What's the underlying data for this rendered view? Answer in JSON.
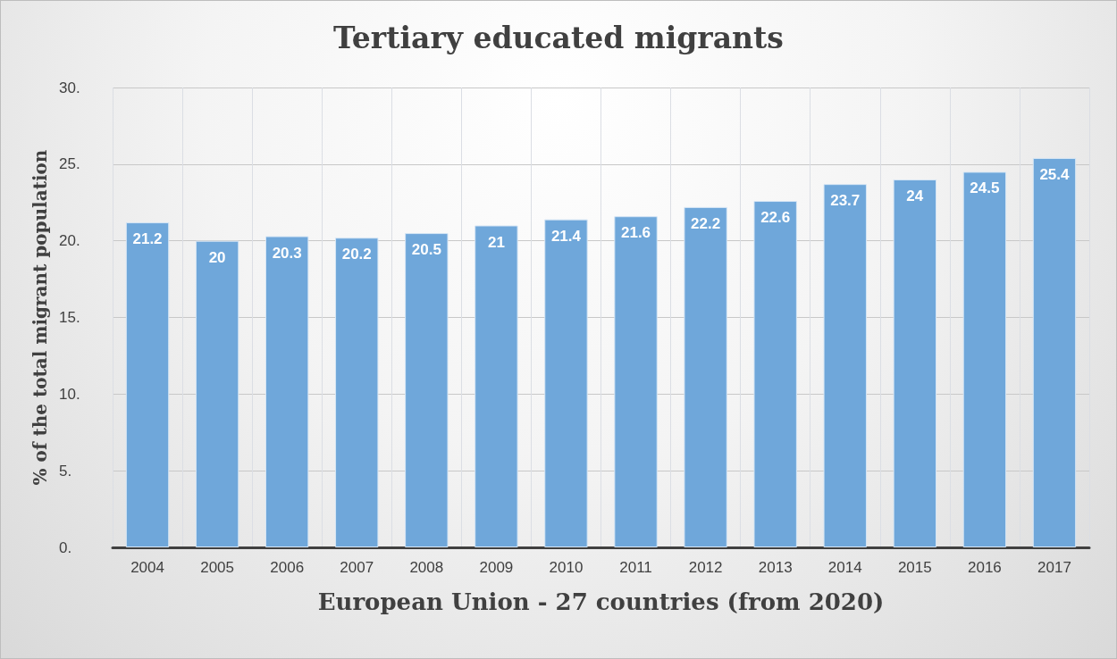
{
  "chart_data": {
    "type": "bar",
    "title": "Tertiary educated migrants",
    "xlabel": "European Union - 27 countries (from 2020)",
    "ylabel": "% of the total migrant population",
    "categories": [
      "2004",
      "2005",
      "2006",
      "2007",
      "2008",
      "2009",
      "2010",
      "2011",
      "2012",
      "2013",
      "2014",
      "2015",
      "2016",
      "2017"
    ],
    "values": [
      21.2,
      20,
      20.3,
      20.2,
      20.5,
      21,
      21.4,
      21.6,
      22.2,
      22.6,
      23.7,
      24,
      24.5,
      25.4
    ],
    "color": "#6fa7da",
    "ylim": [
      0,
      30
    ],
    "yticks": [
      {
        "value": 0,
        "label": "0."
      },
      {
        "value": 5,
        "label": "5."
      },
      {
        "value": 10,
        "label": "10."
      },
      {
        "value": 15,
        "label": "15."
      },
      {
        "value": 20,
        "label": "20."
      },
      {
        "value": 25,
        "label": "25."
      },
      {
        "value": 30,
        "label": "30."
      }
    ],
    "grid": true,
    "data_labels": true
  }
}
